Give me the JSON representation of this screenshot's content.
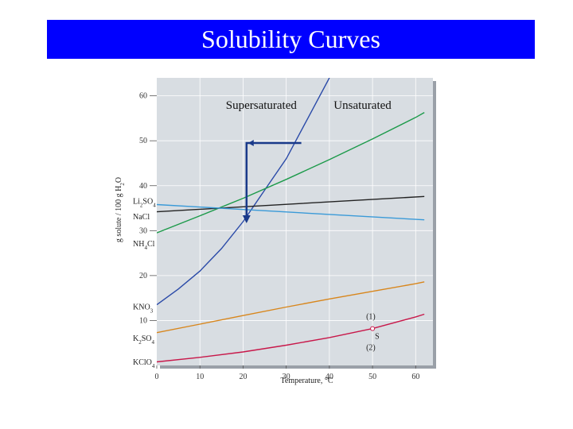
{
  "title": "Solubility Curves",
  "colors": {
    "title_bg": "#0000ff",
    "title_text": "#ffffff",
    "plot_bg": "#d8dde2",
    "arrow": "#1a3a8a"
  },
  "chart_data": {
    "type": "line",
    "xlabel": "Temperature, °C",
    "ylabel": "g solute / 100 g H2O",
    "xlim": [
      0,
      64
    ],
    "ylim": [
      0,
      64
    ],
    "x_ticks": [
      0,
      10,
      20,
      30,
      40,
      50,
      60
    ],
    "y_ticks": [
      {
        "value": 60,
        "label": "60"
      },
      {
        "value": 50,
        "label": "50"
      },
      {
        "value": 40,
        "label": "40"
      },
      {
        "value": 30,
        "label": "30"
      },
      {
        "value": 20,
        "label": "20"
      },
      {
        "value": 10,
        "label": "10"
      }
    ],
    "grid": true,
    "series": [
      {
        "name": "KNO3",
        "color": "#2a4aa8",
        "x": [
          0,
          5,
          10,
          15,
          20,
          25,
          30,
          35,
          40
        ],
        "y": [
          13.5,
          17,
          21,
          26,
          32,
          39,
          46,
          55,
          64
        ]
      },
      {
        "name": "NH4Cl",
        "color": "#1c9a4a",
        "x": [
          0,
          10,
          20,
          30,
          40,
          50,
          60,
          62
        ],
        "y": [
          29.5,
          33.3,
          37.2,
          41.4,
          45.8,
          50.4,
          55.2,
          56.3
        ]
      },
      {
        "name": "Li2SO4",
        "color": "#222222",
        "x": [
          0,
          20,
          40,
          62
        ],
        "y": [
          34.2,
          35.3,
          36.4,
          37.6
        ]
      },
      {
        "name": "NaCl",
        "color": "#3a9ad8",
        "x": [
          0,
          20,
          40,
          62
        ],
        "y": [
          35.8,
          34.7,
          33.6,
          32.4
        ]
      },
      {
        "name": "K2SO4",
        "color": "#d8861c",
        "x": [
          0,
          10,
          20,
          30,
          40,
          50,
          60,
          62
        ],
        "y": [
          7.3,
          9.2,
          11.1,
          13.0,
          14.8,
          16.5,
          18.2,
          18.6
        ]
      },
      {
        "name": "KClO4",
        "color": "#c8184a",
        "x": [
          0,
          10,
          20,
          30,
          40,
          50,
          60,
          62
        ],
        "y": [
          0.8,
          1.8,
          3.0,
          4.5,
          6.2,
          8.2,
          10.8,
          11.4
        ]
      }
    ],
    "compound_labels": [
      {
        "series": "Li2SO4",
        "base": "Li",
        "sub1": "2",
        "mid": "SO",
        "sub2": "4",
        "y": 36
      },
      {
        "series": "NaCl",
        "base": "NaCl",
        "sub1": "",
        "mid": "",
        "sub2": "",
        "y": 32.5
      },
      {
        "series": "NH4Cl",
        "base": "NH",
        "sub1": "4",
        "mid": "Cl",
        "sub2": "",
        "y": 26.5
      },
      {
        "series": "KNO3",
        "base": "KNO",
        "sub1": "3",
        "mid": "",
        "sub2": "",
        "y": 12.5
      },
      {
        "series": "K2SO4",
        "base": "K",
        "sub1": "2",
        "mid": "SO",
        "sub2": "4",
        "y": 5.5
      },
      {
        "series": "KClO4",
        "base": "KClO",
        "sub1": "4",
        "mid": "",
        "sub2": "",
        "y": 0.2
      }
    ],
    "annotations": [
      {
        "text": "Supersaturated",
        "x": 16,
        "y": 58
      },
      {
        "text": "Unsaturated",
        "x": 41,
        "y": 58
      }
    ],
    "point_S": {
      "x": 50,
      "y": 8.2,
      "label": "S",
      "above": "(1)",
      "below": "(2)"
    },
    "arrow": {
      "from": [
        33.5,
        49.5
      ],
      "corner": [
        20.8,
        49.5
      ],
      "to": [
        20.8,
        32
      ]
    }
  }
}
